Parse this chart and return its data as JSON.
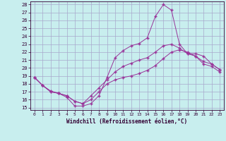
{
  "xlabel": "Windchill (Refroidissement éolien,°C)",
  "xlim_min": -0.5,
  "xlim_max": 23.5,
  "ylim_min": 14.7,
  "ylim_max": 28.4,
  "xticks": [
    0,
    1,
    2,
    3,
    4,
    5,
    6,
    7,
    8,
    9,
    10,
    11,
    12,
    13,
    14,
    15,
    16,
    17,
    18,
    19,
    20,
    21,
    22,
    23
  ],
  "yticks": [
    15,
    16,
    17,
    18,
    19,
    20,
    21,
    22,
    23,
    24,
    25,
    26,
    27,
    28
  ],
  "bg_color": "#c8eeee",
  "grid_color": "#a8a8cc",
  "line_color": "#993399",
  "series_max": [
    18.8,
    17.8,
    17.1,
    16.8,
    16.3,
    15.2,
    15.2,
    15.5,
    16.5,
    18.8,
    21.3,
    22.2,
    22.8,
    23.1,
    23.8,
    26.5,
    28.0,
    27.3,
    23.0,
    21.8,
    21.5,
    20.5,
    20.2,
    19.5
  ],
  "series_mean": [
    18.8,
    17.8,
    17.0,
    16.8,
    16.5,
    15.8,
    15.5,
    16.5,
    17.5,
    18.5,
    19.5,
    20.2,
    20.6,
    21.0,
    21.3,
    22.0,
    22.8,
    23.0,
    22.5,
    21.8,
    21.8,
    21.5,
    20.5,
    19.8
  ],
  "series_min": [
    18.8,
    17.8,
    17.0,
    16.8,
    16.5,
    15.8,
    15.5,
    16.0,
    17.0,
    18.0,
    18.5,
    18.8,
    19.0,
    19.3,
    19.7,
    20.3,
    21.2,
    22.0,
    22.3,
    22.0,
    21.5,
    20.8,
    20.5,
    19.8
  ]
}
